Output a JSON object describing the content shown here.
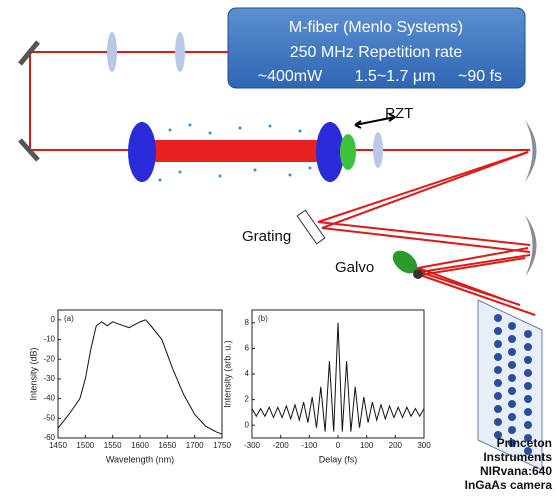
{
  "source": {
    "lines": [
      "M-fiber (Menlo Systems)",
      "250 MHz Repetition rate"
    ],
    "specs": [
      "~400mW",
      "1.5~1.7 μm",
      "~90 fs"
    ]
  },
  "labels": {
    "pzt": "PZT",
    "grating": "Grating",
    "galvo": "Galvo"
  },
  "camera": {
    "lines": [
      "Princeton",
      "Instruments",
      "NIRvana:640",
      "InGaAs camera"
    ]
  },
  "insets": [
    {
      "type": "line",
      "panel": "(a)",
      "xlabel": "Wavelength (nm)",
      "ylabel": "Intensity (dB)",
      "x": [
        1450,
        1470,
        1490,
        1500,
        1510,
        1520,
        1530,
        1540,
        1550,
        1560,
        1580,
        1600,
        1610,
        1620,
        1640,
        1660,
        1680,
        1700,
        1720,
        1740,
        1750
      ],
      "values": [
        -55,
        -48,
        -40,
        -30,
        -15,
        -3,
        -1,
        -3,
        -1,
        -2,
        -4,
        -1,
        0,
        -3,
        -10,
        -25,
        -38,
        -48,
        -54,
        -57,
        -58
      ],
      "color": "#111111",
      "xlim": [
        1450,
        1750
      ],
      "ylim": [
        -60,
        5
      ],
      "xticks": [
        1450,
        1500,
        1550,
        1600,
        1650,
        1700,
        1750
      ],
      "yticks": [
        0,
        -10,
        -20,
        -30,
        -40,
        -50,
        -60
      ]
    },
    {
      "type": "line",
      "panel": "(b)",
      "xlabel": "Delay (fs)",
      "ylabel": "Intensity (arb. u.)",
      "x": [
        -300,
        -285,
        -270,
        -255,
        -240,
        -225,
        -210,
        -195,
        -180,
        -165,
        -150,
        -135,
        -120,
        -105,
        -90,
        -75,
        -60,
        -45,
        -30,
        -15,
        0,
        15,
        30,
        45,
        60,
        75,
        90,
        105,
        120,
        135,
        150,
        165,
        180,
        195,
        210,
        225,
        240,
        255,
        270,
        285,
        300
      ],
      "values": [
        1.3,
        0.7,
        1.3,
        0.7,
        1.4,
        0.6,
        1.4,
        0.6,
        1.5,
        0.5,
        1.6,
        0.4,
        1.8,
        0.2,
        2.2,
        -0.2,
        3.0,
        -0.5,
        5.0,
        -0.5,
        8.0,
        -0.5,
        5.0,
        -0.5,
        3.0,
        -0.2,
        2.2,
        0.2,
        1.8,
        0.4,
        1.6,
        0.5,
        1.5,
        0.6,
        1.4,
        0.6,
        1.4,
        0.7,
        1.3,
        0.7,
        1.3
      ],
      "color": "#111111",
      "xlim": [
        -300,
        300
      ],
      "ylim": [
        -1,
        9
      ],
      "xticks": [
        -300,
        -200,
        -100,
        0,
        100,
        200,
        300
      ],
      "yticks": [
        0,
        2,
        4,
        6,
        8
      ]
    }
  ]
}
